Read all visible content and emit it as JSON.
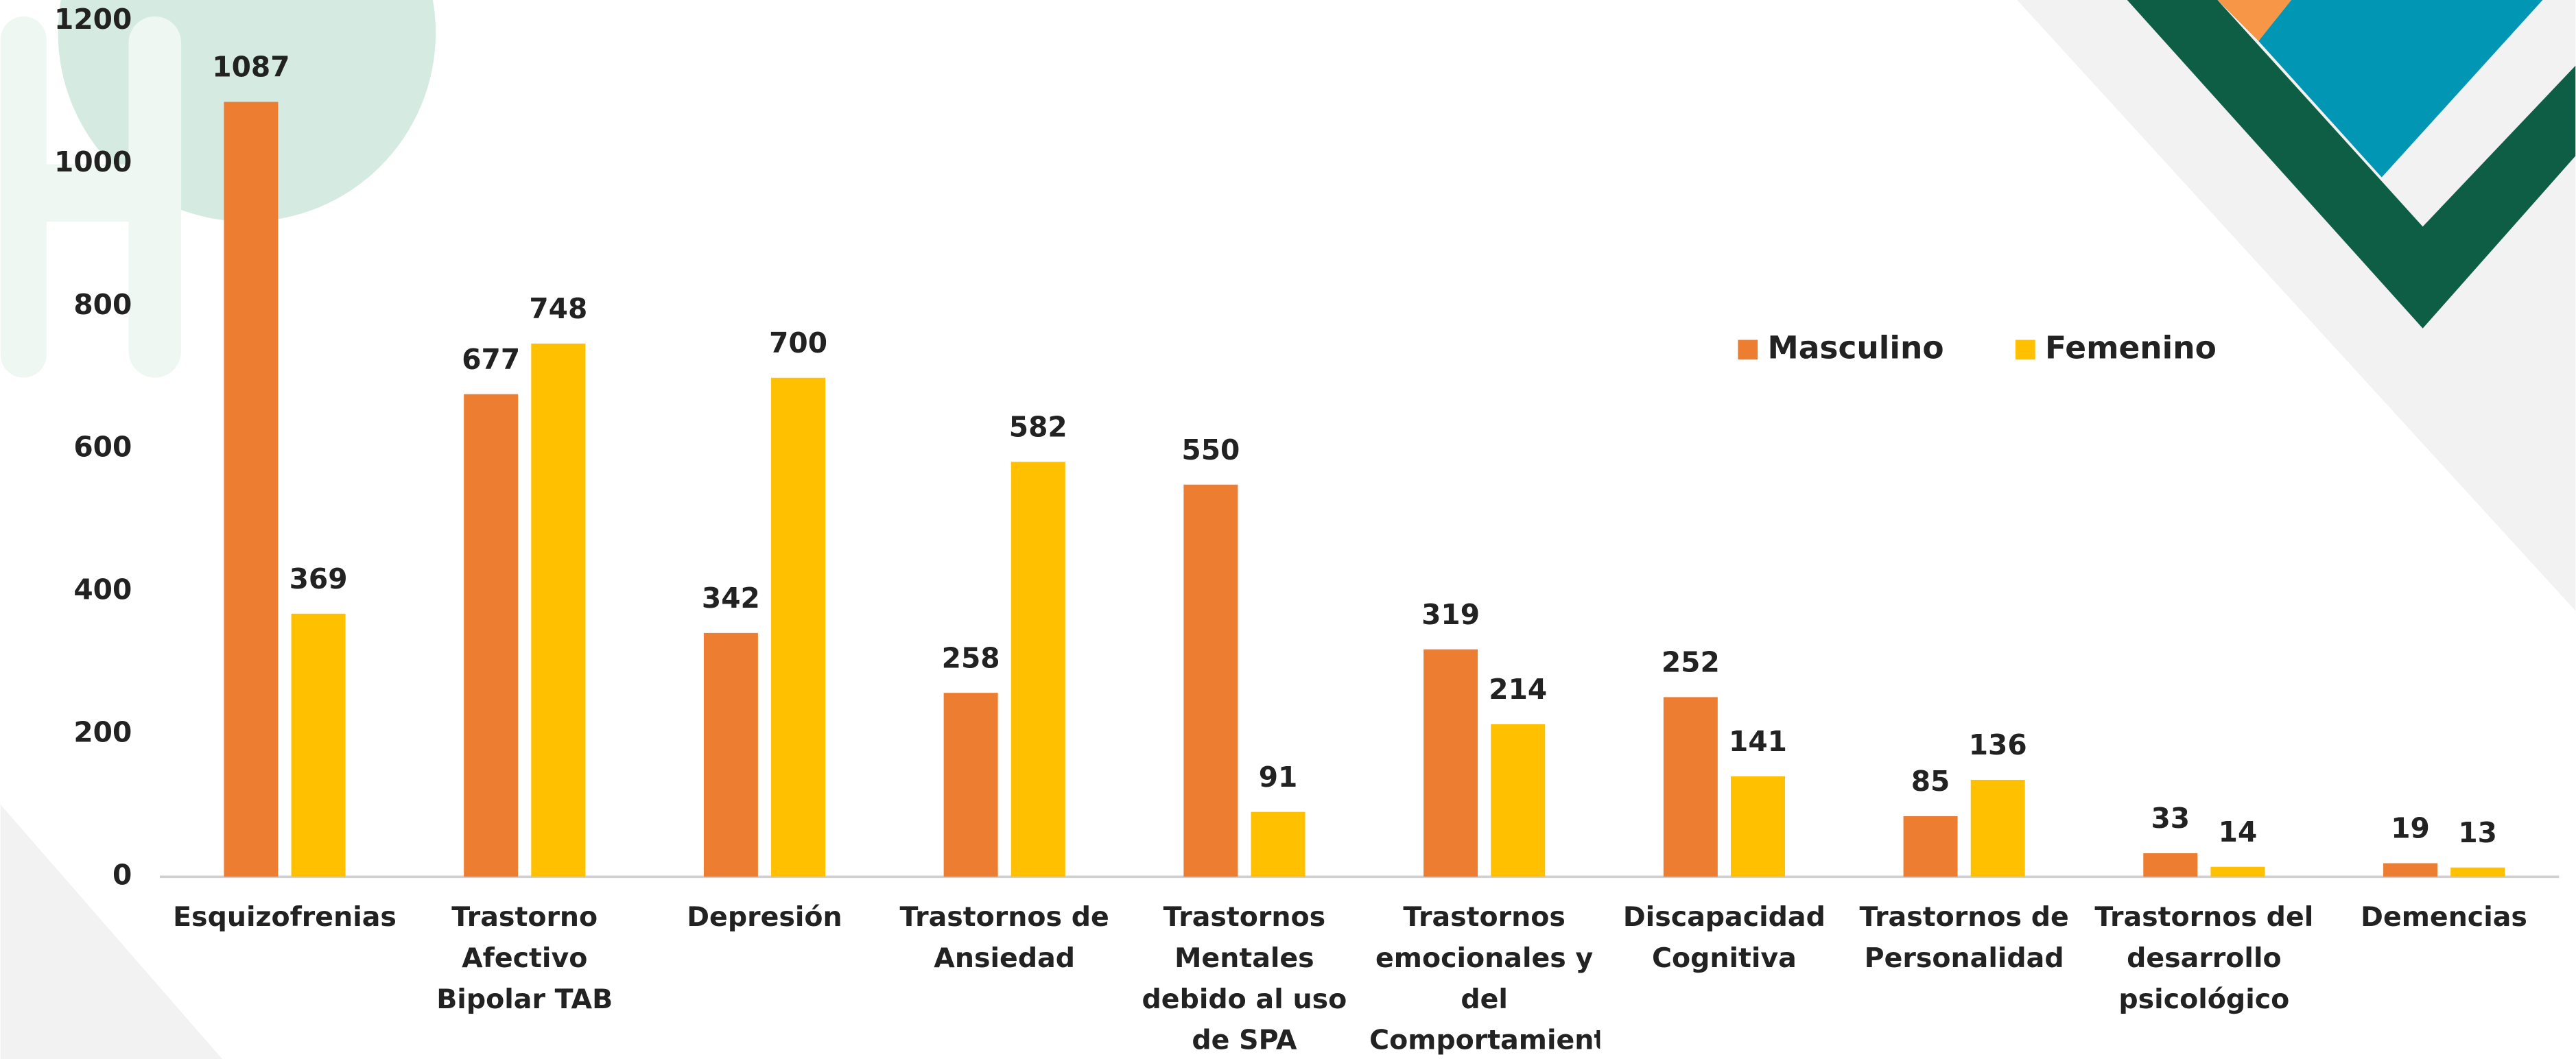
{
  "chart_data": {
    "type": "bar",
    "categories": [
      "Esquizofrenias",
      "Trastorno Afectivo Bipolar TAB",
      "Depresión",
      "Trastornos de Ansiedad",
      "Trastornos Mentales debido al uso de SPA",
      "Trastornos emocionales y del Comportamiento",
      "Discapacidad Cognitiva",
      "Trastornos de Personalidad",
      "Trastornos del desarrollo psicológico",
      "Demencias"
    ],
    "series": [
      {
        "name": "Masculino",
        "color": "#ed7d31",
        "values": [
          1087,
          677,
          342,
          258,
          550,
          319,
          252,
          85,
          33,
          19
        ]
      },
      {
        "name": "Femenino",
        "color": "#ffc000",
        "values": [
          369,
          748,
          700,
          582,
          91,
          214,
          141,
          136,
          14,
          13
        ]
      }
    ],
    "ylim": [
      0,
      1200
    ],
    "yticks": [
      0,
      200,
      400,
      600,
      800,
      1000,
      1200
    ],
    "grid": false,
    "legend": "top-right"
  }
}
